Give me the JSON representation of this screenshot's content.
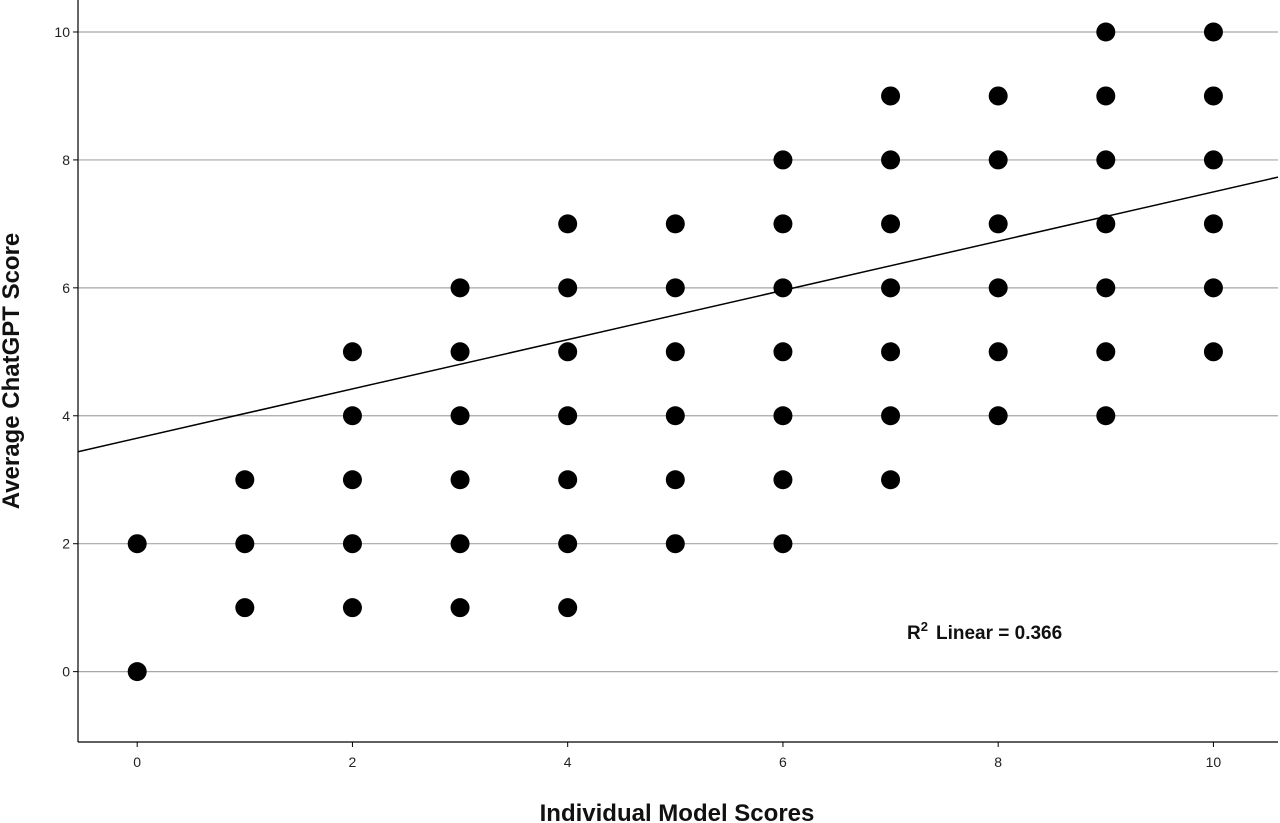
{
  "chart_data": {
    "type": "scatter",
    "title": "",
    "xlabel": "Individual Model Scores",
    "ylabel": "Average ChatGPT Score",
    "xlim": [
      -0.55,
      10.6
    ],
    "ylim": [
      -1.1,
      10.5
    ],
    "xticks": [
      0,
      2,
      4,
      6,
      8,
      10
    ],
    "yticks": [
      0,
      2,
      4,
      6,
      8,
      10
    ],
    "grid": "horizontal",
    "legend": "none",
    "colors": {
      "points": "#000000",
      "gridline": "#a6a6a6",
      "fit_line": "#000000"
    },
    "points": [
      [
        0,
        0
      ],
      [
        0,
        2
      ],
      [
        1,
        1
      ],
      [
        1,
        2
      ],
      [
        1,
        3
      ],
      [
        2,
        1
      ],
      [
        2,
        2
      ],
      [
        2,
        3
      ],
      [
        2,
        4
      ],
      [
        2,
        5
      ],
      [
        3,
        1
      ],
      [
        3,
        2
      ],
      [
        3,
        3
      ],
      [
        3,
        4
      ],
      [
        3,
        5
      ],
      [
        3,
        6
      ],
      [
        4,
        1
      ],
      [
        4,
        2
      ],
      [
        4,
        3
      ],
      [
        4,
        4
      ],
      [
        4,
        5
      ],
      [
        4,
        6
      ],
      [
        4,
        7
      ],
      [
        5,
        2
      ],
      [
        5,
        3
      ],
      [
        5,
        4
      ],
      [
        5,
        5
      ],
      [
        5,
        6
      ],
      [
        5,
        7
      ],
      [
        6,
        2
      ],
      [
        6,
        3
      ],
      [
        6,
        4
      ],
      [
        6,
        5
      ],
      [
        6,
        6
      ],
      [
        6,
        7
      ],
      [
        6,
        8
      ],
      [
        7,
        3
      ],
      [
        7,
        4
      ],
      [
        7,
        5
      ],
      [
        7,
        6
      ],
      [
        7,
        7
      ],
      [
        7,
        8
      ],
      [
        7,
        9
      ],
      [
        8,
        4
      ],
      [
        8,
        5
      ],
      [
        8,
        6
      ],
      [
        8,
        7
      ],
      [
        8,
        8
      ],
      [
        8,
        9
      ],
      [
        9,
        4
      ],
      [
        9,
        5
      ],
      [
        9,
        6
      ],
      [
        9,
        7
      ],
      [
        9,
        8
      ],
      [
        9,
        9
      ],
      [
        9,
        10
      ],
      [
        10,
        5
      ],
      [
        10,
        6
      ],
      [
        10,
        7
      ],
      [
        10,
        8
      ],
      [
        10,
        9
      ],
      [
        10,
        10
      ]
    ],
    "fit_line": {
      "type": "linear",
      "intercept": 3.65,
      "slope": 0.385
    },
    "annotation": {
      "r2_prefix": "R",
      "r2_sup": "2",
      "r2_text": "Linear = 0.366"
    }
  }
}
